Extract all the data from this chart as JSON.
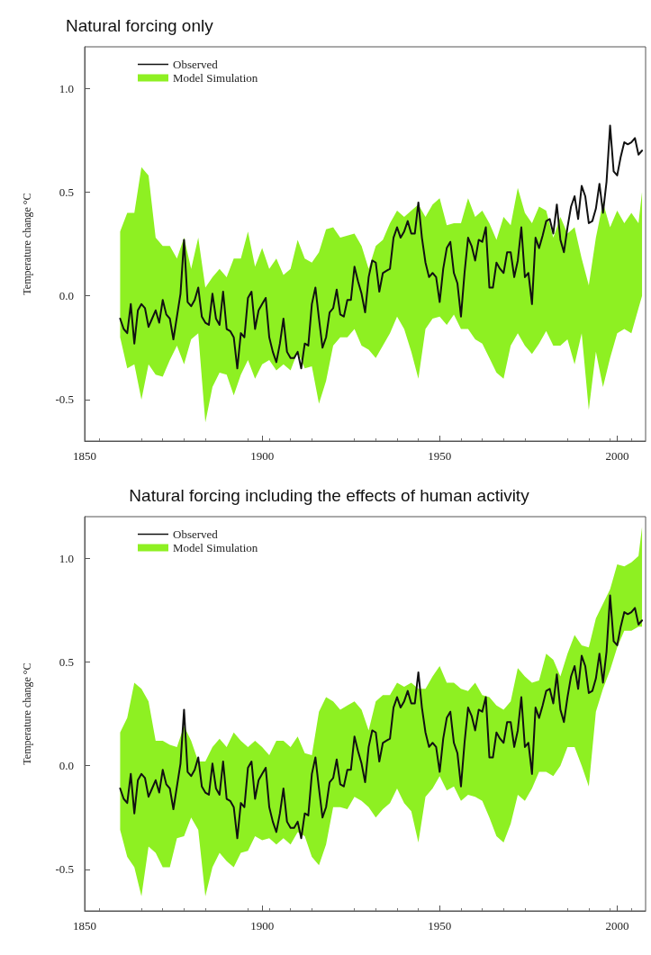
{
  "chart_data": [
    {
      "type": "line",
      "title": "Natural forcing only",
      "ylabel": "Temperature change °C",
      "xlim": [
        1850,
        2008
      ],
      "xticks": [
        1850,
        1900,
        1950,
        2000
      ],
      "ylim": [
        -0.7,
        1.2
      ],
      "yticks": [
        {
          "value": -0.5,
          "label": "-0.5"
        },
        {
          "value": 0,
          "label": "0.0"
        },
        {
          "value": 0.5,
          "label": "0.5"
        },
        {
          "value": 1,
          "label": "1.0"
        }
      ],
      "legend": "top left",
      "marker": "none",
      "line_style": "solid",
      "series": [
        {
          "name": "Observed",
          "color": "#111111",
          "x": [
            1860,
            1861,
            1862,
            1863,
            1864,
            1865,
            1866,
            1867,
            1868,
            1869,
            1870,
            1871,
            1872,
            1873,
            1874,
            1875,
            1876,
            1877,
            1878,
            1879,
            1880,
            1881,
            1882,
            1883,
            1884,
            1885,
            1886,
            1887,
            1888,
            1889,
            1890,
            1891,
            1892,
            1893,
            1894,
            1895,
            1896,
            1897,
            1898,
            1899,
            1900,
            1901,
            1902,
            1903,
            1904,
            1905,
            1906,
            1907,
            1908,
            1909,
            1910,
            1911,
            1912,
            1913,
            1914,
            1915,
            1916,
            1917,
            1918,
            1919,
            1920,
            1921,
            1922,
            1923,
            1924,
            1925,
            1926,
            1927,
            1928,
            1929,
            1930,
            1931,
            1932,
            1933,
            1934,
            1935,
            1936,
            1937,
            1938,
            1939,
            1940,
            1941,
            1942,
            1943,
            1944,
            1945,
            1946,
            1947,
            1948,
            1949,
            1950,
            1951,
            1952,
            1953,
            1954,
            1955,
            1956,
            1957,
            1958,
            1959,
            1960,
            1961,
            1962,
            1963,
            1964,
            1965,
            1966,
            1967,
            1968,
            1969,
            1970,
            1971,
            1972,
            1973,
            1974,
            1975,
            1976,
            1977,
            1978,
            1979,
            1980,
            1981,
            1982,
            1983,
            1984,
            1985,
            1986,
            1987,
            1988,
            1989,
            1990,
            1991,
            1992,
            1993,
            1994,
            1995,
            1996,
            1997,
            1998,
            1999,
            2000,
            2001,
            2002,
            2003,
            2004,
            2005,
            2006,
            2007
          ],
          "values": [
            -0.11,
            -0.16,
            -0.18,
            -0.04,
            -0.23,
            -0.07,
            -0.04,
            -0.06,
            -0.15,
            -0.11,
            -0.07,
            -0.13,
            -0.02,
            -0.09,
            -0.11,
            -0.21,
            -0.1,
            0.01,
            0.27,
            -0.03,
            -0.05,
            -0.02,
            0.04,
            -0.1,
            -0.13,
            -0.14,
            0.01,
            -0.11,
            -0.14,
            0.02,
            -0.16,
            -0.17,
            -0.2,
            -0.35,
            -0.18,
            -0.2,
            -0.01,
            0.02,
            -0.16,
            -0.07,
            -0.04,
            -0.01,
            -0.2,
            -0.27,
            -0.32,
            -0.23,
            -0.11,
            -0.27,
            -0.3,
            -0.3,
            -0.27,
            -0.35,
            -0.23,
            -0.24,
            -0.04,
            0.04,
            -0.11,
            -0.25,
            -0.2,
            -0.08,
            -0.06,
            0.03,
            -0.09,
            -0.1,
            -0.02,
            -0.02,
            0.14,
            0.07,
            0.01,
            -0.08,
            0.09,
            0.17,
            0.16,
            0.02,
            0.11,
            0.12,
            0.13,
            0.28,
            0.33,
            0.28,
            0.31,
            0.36,
            0.3,
            0.3,
            0.45,
            0.28,
            0.16,
            0.09,
            0.11,
            0.09,
            -0.03,
            0.13,
            0.23,
            0.26,
            0.11,
            0.06,
            -0.1,
            0.11,
            0.28,
            0.24,
            0.17,
            0.27,
            0.26,
            0.33,
            0.04,
            0.04,
            0.16,
            0.13,
            0.11,
            0.21,
            0.21,
            0.09,
            0.17,
            0.33,
            0.09,
            0.11,
            -0.04,
            0.28,
            0.23,
            0.29,
            0.36,
            0.37,
            0.3,
            0.44,
            0.27,
            0.21,
            0.33,
            0.43,
            0.48,
            0.37,
            0.53,
            0.48,
            0.35,
            0.36,
            0.42,
            0.54,
            0.4,
            0.55,
            0.82,
            0.6,
            0.58,
            0.67,
            0.74,
            0.73,
            0.74,
            0.76,
            0.68,
            0.7
          ]
        },
        {
          "name": "Model Simulation",
          "type": "area",
          "color": "#8ef022",
          "values": [
            null,
            null,
            null,
            null,
            null,
            null,
            null,
            null,
            null,
            null,
            null,
            null,
            null,
            null,
            null,
            null,
            null,
            null,
            null,
            null,
            null,
            null,
            null,
            null,
            null,
            null,
            null,
            null,
            null,
            null,
            null,
            null,
            null,
            null,
            null,
            null,
            null,
            null,
            null,
            null,
            null,
            null,
            null,
            null,
            null,
            null,
            null,
            null,
            null,
            null,
            null,
            null,
            null,
            null,
            null,
            null,
            null,
            null,
            null,
            null,
            null,
            null,
            null,
            null,
            null,
            null,
            null,
            null,
            null,
            null,
            null,
            null,
            null,
            null,
            null
          ],
          "x": [
            1860,
            1862,
            1864,
            1866,
            1868,
            1870,
            1872,
            1874,
            1876,
            1878,
            1880,
            1882,
            1884,
            1886,
            1888,
            1890,
            1892,
            1894,
            1896,
            1898,
            1900,
            1902,
            1904,
            1906,
            1908,
            1910,
            1912,
            1914,
            1916,
            1918,
            1920,
            1922,
            1924,
            1926,
            1928,
            1930,
            1932,
            1934,
            1936,
            1938,
            1940,
            1942,
            1944,
            1946,
            1948,
            1950,
            1952,
            1954,
            1956,
            1958,
            1960,
            1962,
            1964,
            1966,
            1968,
            1970,
            1972,
            1974,
            1976,
            1978,
            1980,
            1982,
            1984,
            1986,
            1988,
            1990,
            1992,
            1994,
            1996,
            1998,
            2000,
            2002,
            2004,
            2006,
            2007
          ],
          "upper": [
            0.31,
            0.4,
            0.4,
            0.62,
            0.58,
            0.28,
            0.24,
            0.24,
            0.18,
            0.28,
            0.13,
            0.28,
            0.04,
            0.09,
            0.13,
            0.09,
            0.18,
            0.18,
            0.31,
            0.14,
            0.23,
            0.13,
            0.18,
            0.1,
            0.13,
            0.27,
            0.18,
            0.16,
            0.21,
            0.32,
            0.33,
            0.28,
            0.29,
            0.3,
            0.24,
            0.13,
            0.24,
            0.27,
            0.35,
            0.41,
            0.38,
            0.41,
            0.44,
            0.38,
            0.44,
            0.47,
            0.34,
            0.35,
            0.35,
            0.47,
            0.38,
            0.41,
            0.35,
            0.27,
            0.38,
            0.34,
            0.52,
            0.4,
            0.35,
            0.43,
            0.41,
            0.28,
            0.38,
            0.3,
            0.33,
            0.18,
            0.05,
            0.28,
            0.45,
            0.33,
            0.41,
            0.35,
            0.4,
            0.35,
            0.5
          ],
          "lower": [
            -0.2,
            -0.35,
            -0.33,
            -0.5,
            -0.33,
            -0.38,
            -0.39,
            -0.31,
            -0.24,
            -0.33,
            -0.21,
            -0.18,
            -0.61,
            -0.44,
            -0.37,
            -0.38,
            -0.48,
            -0.38,
            -0.31,
            -0.4,
            -0.33,
            -0.31,
            -0.36,
            -0.33,
            -0.36,
            -0.27,
            -0.35,
            -0.34,
            -0.52,
            -0.41,
            -0.24,
            -0.2,
            -0.2,
            -0.16,
            -0.24,
            -0.26,
            -0.3,
            -0.24,
            -0.18,
            -0.1,
            -0.16,
            -0.27,
            -0.4,
            -0.16,
            -0.11,
            -0.1,
            -0.14,
            -0.09,
            -0.16,
            -0.16,
            -0.21,
            -0.23,
            -0.3,
            -0.37,
            -0.4,
            -0.24,
            -0.18,
            -0.24,
            -0.28,
            -0.23,
            -0.17,
            -0.24,
            -0.24,
            -0.21,
            -0.33,
            -0.18,
            -0.55,
            -0.27,
            -0.44,
            -0.3,
            -0.18,
            -0.16,
            -0.18,
            -0.06,
            0.0
          ]
        }
      ]
    },
    {
      "type": "line",
      "title": "Natural forcing including the effects of human activity",
      "ylabel": "Temperature change °C",
      "xlim": [
        1850,
        2008
      ],
      "xticks": [
        1850,
        1900,
        1950,
        2000
      ],
      "ylim": [
        -0.7,
        1.2
      ],
      "yticks": [
        {
          "value": -0.5,
          "label": "-0.5"
        },
        {
          "value": 0,
          "label": "0.0"
        },
        {
          "value": 0.5,
          "label": "0.5"
        },
        {
          "value": 1,
          "label": "1.0"
        }
      ],
      "legend": "top left",
      "marker": "none",
      "line_style": "solid",
      "series": [
        {
          "name": "Observed",
          "color": "#111111",
          "x": [
            1860,
            1861,
            1862,
            1863,
            1864,
            1865,
            1866,
            1867,
            1868,
            1869,
            1870,
            1871,
            1872,
            1873,
            1874,
            1875,
            1876,
            1877,
            1878,
            1879,
            1880,
            1881,
            1882,
            1883,
            1884,
            1885,
            1886,
            1887,
            1888,
            1889,
            1890,
            1891,
            1892,
            1893,
            1894,
            1895,
            1896,
            1897,
            1898,
            1899,
            1900,
            1901,
            1902,
            1903,
            1904,
            1905,
            1906,
            1907,
            1908,
            1909,
            1910,
            1911,
            1912,
            1913,
            1914,
            1915,
            1916,
            1917,
            1918,
            1919,
            1920,
            1921,
            1922,
            1923,
            1924,
            1925,
            1926,
            1927,
            1928,
            1929,
            1930,
            1931,
            1932,
            1933,
            1934,
            1935,
            1936,
            1937,
            1938,
            1939,
            1940,
            1941,
            1942,
            1943,
            1944,
            1945,
            1946,
            1947,
            1948,
            1949,
            1950,
            1951,
            1952,
            1953,
            1954,
            1955,
            1956,
            1957,
            1958,
            1959,
            1960,
            1961,
            1962,
            1963,
            1964,
            1965,
            1966,
            1967,
            1968,
            1969,
            1970,
            1971,
            1972,
            1973,
            1974,
            1975,
            1976,
            1977,
            1978,
            1979,
            1980,
            1981,
            1982,
            1983,
            1984,
            1985,
            1986,
            1987,
            1988,
            1989,
            1990,
            1991,
            1992,
            1993,
            1994,
            1995,
            1996,
            1997,
            1998,
            1999,
            2000,
            2001,
            2002,
            2003,
            2004,
            2005,
            2006,
            2007
          ],
          "values": [
            -0.11,
            -0.16,
            -0.18,
            -0.04,
            -0.23,
            -0.07,
            -0.04,
            -0.06,
            -0.15,
            -0.11,
            -0.07,
            -0.13,
            -0.02,
            -0.09,
            -0.11,
            -0.21,
            -0.1,
            0.01,
            0.27,
            -0.03,
            -0.05,
            -0.02,
            0.04,
            -0.1,
            -0.13,
            -0.14,
            0.01,
            -0.11,
            -0.14,
            0.02,
            -0.16,
            -0.17,
            -0.2,
            -0.35,
            -0.18,
            -0.2,
            -0.01,
            0.02,
            -0.16,
            -0.07,
            -0.04,
            -0.01,
            -0.2,
            -0.27,
            -0.32,
            -0.23,
            -0.11,
            -0.27,
            -0.3,
            -0.3,
            -0.27,
            -0.35,
            -0.23,
            -0.24,
            -0.04,
            0.04,
            -0.11,
            -0.25,
            -0.2,
            -0.08,
            -0.06,
            0.03,
            -0.09,
            -0.1,
            -0.02,
            -0.02,
            0.14,
            0.07,
            0.01,
            -0.08,
            0.09,
            0.17,
            0.16,
            0.02,
            0.11,
            0.12,
            0.13,
            0.28,
            0.33,
            0.28,
            0.31,
            0.36,
            0.3,
            0.3,
            0.45,
            0.28,
            0.16,
            0.09,
            0.11,
            0.09,
            -0.03,
            0.13,
            0.23,
            0.26,
            0.11,
            0.06,
            -0.1,
            0.11,
            0.28,
            0.24,
            0.17,
            0.27,
            0.26,
            0.33,
            0.04,
            0.04,
            0.16,
            0.13,
            0.11,
            0.21,
            0.21,
            0.09,
            0.17,
            0.33,
            0.09,
            0.11,
            -0.04,
            0.28,
            0.23,
            0.29,
            0.36,
            0.37,
            0.3,
            0.44,
            0.27,
            0.21,
            0.33,
            0.43,
            0.48,
            0.37,
            0.53,
            0.48,
            0.35,
            0.36,
            0.42,
            0.54,
            0.4,
            0.55,
            0.82,
            0.6,
            0.58,
            0.67,
            0.74,
            0.73,
            0.74,
            0.76,
            0.68,
            0.7
          ]
        },
        {
          "name": "Model Simulation",
          "type": "area",
          "color": "#8ef022",
          "values": [
            null,
            null,
            null,
            null,
            null,
            null,
            null,
            null,
            null,
            null,
            null,
            null,
            null,
            null,
            null,
            null,
            null,
            null,
            null,
            null,
            null,
            null,
            null,
            null,
            null,
            null,
            null,
            null,
            null,
            null,
            null,
            null,
            null,
            null,
            null,
            null,
            null,
            null,
            null,
            null,
            null,
            null,
            null,
            null,
            null,
            null,
            null,
            null,
            null,
            null,
            null,
            null,
            null,
            null,
            null,
            null,
            null,
            null,
            null,
            null,
            null,
            null,
            null,
            null,
            null,
            null,
            null,
            null,
            null,
            null,
            null,
            null,
            null,
            null,
            null
          ],
          "x": [
            1860,
            1862,
            1864,
            1866,
            1868,
            1870,
            1872,
            1874,
            1876,
            1878,
            1880,
            1882,
            1884,
            1886,
            1888,
            1890,
            1892,
            1894,
            1896,
            1898,
            1900,
            1902,
            1904,
            1906,
            1908,
            1910,
            1912,
            1914,
            1916,
            1918,
            1920,
            1922,
            1924,
            1926,
            1928,
            1930,
            1932,
            1934,
            1936,
            1938,
            1940,
            1942,
            1944,
            1946,
            1948,
            1950,
            1952,
            1954,
            1956,
            1958,
            1960,
            1962,
            1964,
            1966,
            1968,
            1970,
            1972,
            1974,
            1976,
            1978,
            1980,
            1982,
            1984,
            1986,
            1988,
            1990,
            1992,
            1994,
            1996,
            1998,
            2000,
            2002,
            2004,
            2006,
            2007
          ],
          "upper": [
            0.16,
            0.23,
            0.4,
            0.37,
            0.31,
            0.12,
            0.12,
            0.1,
            0.09,
            0.19,
            0.12,
            0.02,
            0.02,
            0.09,
            0.13,
            0.09,
            0.16,
            0.12,
            0.09,
            0.12,
            0.09,
            0.05,
            0.12,
            0.12,
            0.09,
            0.14,
            0.06,
            0.05,
            0.26,
            0.33,
            0.31,
            0.27,
            0.29,
            0.31,
            0.27,
            0.17,
            0.31,
            0.34,
            0.34,
            0.4,
            0.38,
            0.4,
            0.37,
            0.37,
            0.43,
            0.48,
            0.4,
            0.4,
            0.37,
            0.36,
            0.4,
            0.34,
            0.33,
            0.29,
            0.27,
            0.31,
            0.47,
            0.43,
            0.4,
            0.41,
            0.54,
            0.51,
            0.43,
            0.54,
            0.63,
            0.58,
            0.57,
            0.71,
            0.78,
            0.85,
            0.97,
            0.96,
            0.98,
            1.01,
            1.15
          ],
          "lower": [
            -0.31,
            -0.44,
            -0.49,
            -0.63,
            -0.39,
            -0.42,
            -0.49,
            -0.49,
            -0.35,
            -0.34,
            -0.25,
            -0.31,
            -0.63,
            -0.49,
            -0.42,
            -0.46,
            -0.49,
            -0.42,
            -0.41,
            -0.34,
            -0.36,
            -0.35,
            -0.38,
            -0.35,
            -0.38,
            -0.32,
            -0.34,
            -0.44,
            -0.48,
            -0.38,
            -0.2,
            -0.2,
            -0.21,
            -0.15,
            -0.17,
            -0.2,
            -0.25,
            -0.21,
            -0.18,
            -0.11,
            -0.18,
            -0.22,
            -0.37,
            -0.15,
            -0.11,
            -0.05,
            -0.12,
            -0.1,
            -0.17,
            -0.14,
            -0.15,
            -0.17,
            -0.25,
            -0.34,
            -0.37,
            -0.28,
            -0.14,
            -0.17,
            -0.11,
            -0.03,
            -0.03,
            -0.05,
            0.0,
            0.09,
            0.09,
            0.0,
            -0.1,
            0.26,
            0.37,
            0.46,
            0.57,
            0.65,
            0.65,
            0.67,
            0.67
          ]
        }
      ]
    }
  ]
}
